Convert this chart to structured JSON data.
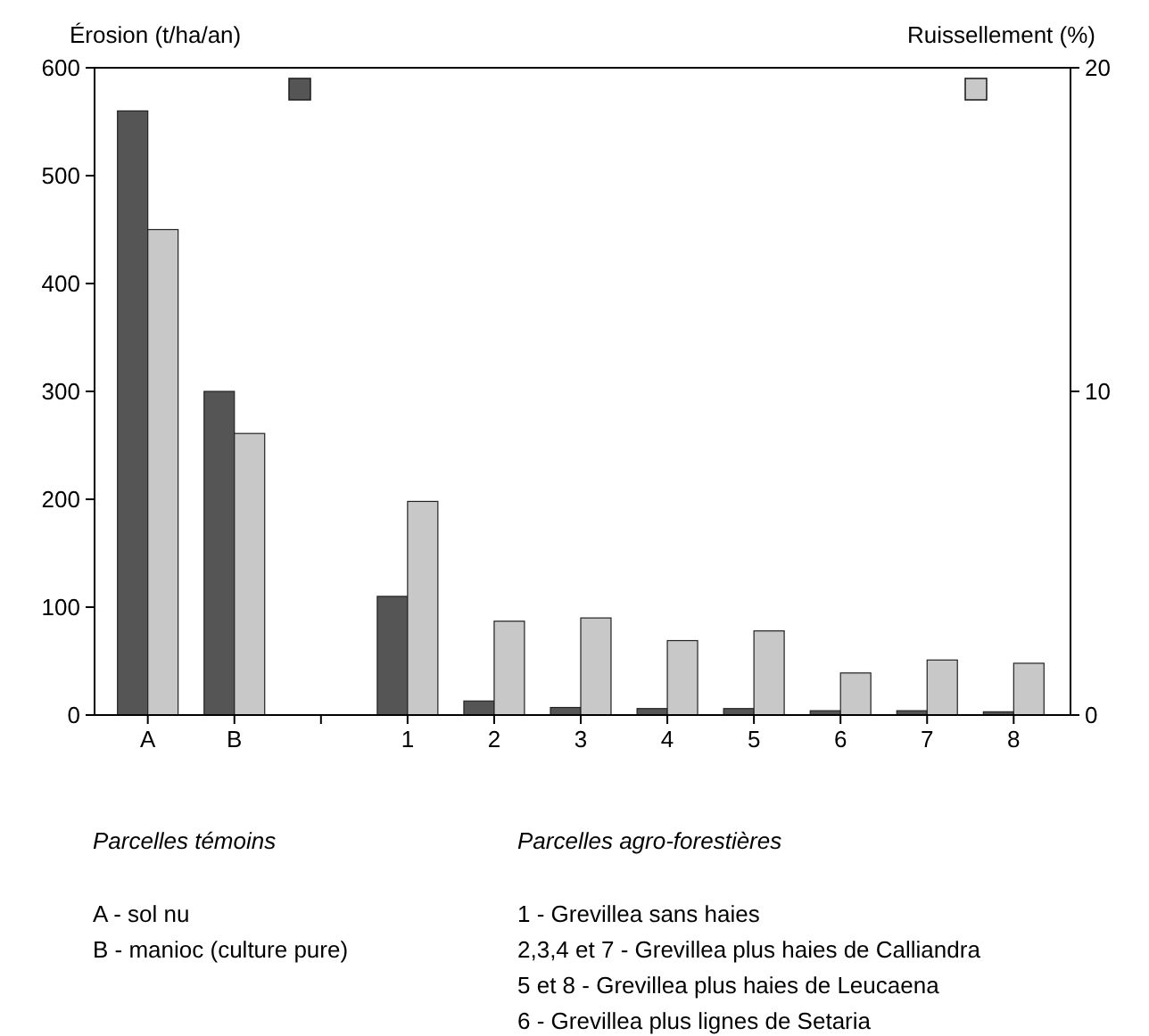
{
  "chart_data": {
    "type": "bar",
    "categories": [
      "A",
      "B",
      null,
      "1",
      "2",
      "3",
      "4",
      "5",
      "6",
      "7",
      "8"
    ],
    "series": [
      {
        "color": "#555555",
        "values": [
          560,
          300,
          null,
          110,
          13,
          7,
          6,
          6,
          4,
          4,
          3
        ]
      },
      {
        "color": "#c8c8c8",
        "axis": "y2",
        "values": [
          15,
          8.7,
          null,
          6.6,
          2.9,
          3.0,
          2.3,
          2.6,
          1.3,
          1.7,
          1.6
        ]
      }
    ],
    "ylim": [
      0,
      600
    ],
    "yticks": [
      0,
      100,
      200,
      300,
      400,
      500,
      600
    ],
    "y2lim": [
      0,
      20
    ],
    "y2ticks": [
      0,
      10,
      20
    ],
    "ylabel": "Érosion (t/ha/an)",
    "y2label": "Ruissellement (%)",
    "grid": false,
    "annotations": [
      "Parcelles témoins",
      "Parcelles agro-forestières",
      "A - sol nu",
      "B - manioc (culture pure)",
      "1 - Grevillea sans haies",
      "2,3,4 et 7 - Grevillea plus haies de Calliandra",
      "5 et 8 - Grevillea plus haies de Leucaena",
      "6 -  Grevillea plus lignes de Setaria"
    ]
  }
}
